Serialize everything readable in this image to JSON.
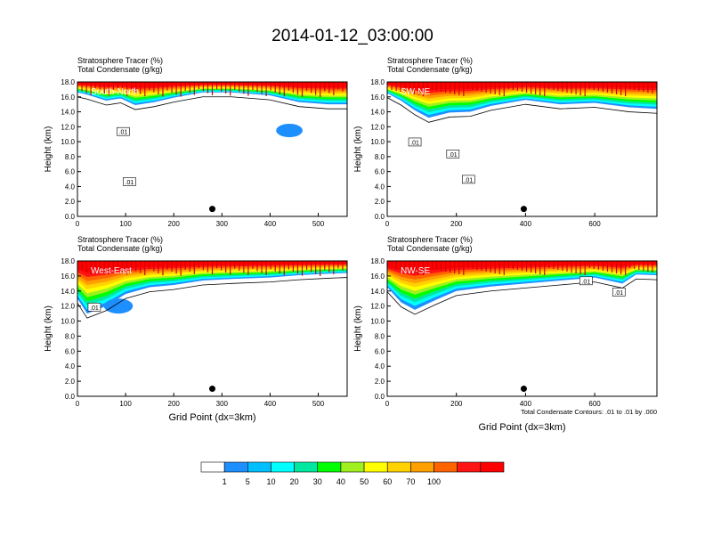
{
  "title": "2014-01-12_03:00:00",
  "chart_data": [
    {
      "type": "heatmap",
      "panel_label": "South-North",
      "title_lines": [
        "Stratosphere Tracer   (%)",
        "Total Condensate   (g/kg)"
      ],
      "ylabel": "Height (km)",
      "xlabel": "",
      "xlim": [
        0,
        560
      ],
      "ylim": [
        0,
        18
      ],
      "xticks": [
        0,
        100,
        200,
        300,
        400,
        500
      ],
      "yticks": [
        "0.0",
        "2.0",
        "4.0",
        "6.0",
        "8.0",
        "10.0",
        "12.0",
        "14.0",
        "16.0",
        "18.0"
      ],
      "contour_labels": [
        {
          "text": ".01",
          "x": 95,
          "y": 11.3
        },
        {
          "text": ".01",
          "x": 108,
          "y": 4.6
        }
      ],
      "marker": {
        "x": 280,
        "y": 1.0
      },
      "stratosphere_base_km": [
        [
          0,
          16.6
        ],
        [
          20,
          16.3
        ],
        [
          60,
          15.5
        ],
        [
          90,
          15.8
        ],
        [
          120,
          14.9
        ],
        [
          160,
          15.3
        ],
        [
          200,
          15.9
        ],
        [
          260,
          16.6
        ],
        [
          320,
          16.6
        ],
        [
          400,
          16.2
        ],
        [
          460,
          15.3
        ],
        [
          520,
          15.0
        ],
        [
          560,
          15.0
        ]
      ],
      "extra_blobs": [
        {
          "x": 440,
          "y": 11.5,
          "w": 55,
          "h": 1.8
        }
      ]
    },
    {
      "type": "heatmap",
      "panel_label": "SW-NE",
      "title_lines": [
        "Stratosphere Tracer   (%)",
        "Total Condensate   (g/kg)"
      ],
      "ylabel": "Height (km)",
      "xlabel": "",
      "xlim": [
        0,
        780
      ],
      "ylim": [
        0,
        18
      ],
      "xticks": [
        0,
        200,
        400,
        600
      ],
      "yticks": [
        "0.0",
        "2.0",
        "4.0",
        "6.0",
        "8.0",
        "10.0",
        "12.0",
        "14.0",
        "16.0",
        "18.0"
      ],
      "contour_labels": [
        {
          "text": ".01",
          "x": 80,
          "y": 9.9
        },
        {
          "text": ".01",
          "x": 190,
          "y": 8.3
        },
        {
          "text": ".01",
          "x": 235,
          "y": 4.9
        }
      ],
      "marker": {
        "x": 395,
        "y": 1.0
      },
      "stratosphere_base_km": [
        [
          0,
          16.5
        ],
        [
          40,
          15.5
        ],
        [
          80,
          14.2
        ],
        [
          120,
          13.2
        ],
        [
          180,
          13.9
        ],
        [
          240,
          14.0
        ],
        [
          300,
          14.8
        ],
        [
          400,
          15.6
        ],
        [
          500,
          15.0
        ],
        [
          600,
          15.2
        ],
        [
          700,
          14.6
        ],
        [
          780,
          14.4
        ]
      ],
      "extra_blobs": []
    },
    {
      "type": "heatmap",
      "panel_label": "West-East",
      "title_lines": [
        "Stratosphere Tracer   (%)",
        "Total Condensate   (g/kg)"
      ],
      "ylabel": "Height (km)",
      "xlabel": "Grid Point (dx=3km)",
      "xlim": [
        0,
        560
      ],
      "ylim": [
        0,
        18
      ],
      "xticks": [
        0,
        100,
        200,
        300,
        400,
        500
      ],
      "yticks": [
        "0.0",
        "2.0",
        "4.0",
        "6.0",
        "8.0",
        "10.0",
        "12.0",
        "14.0",
        "16.0",
        "18.0"
      ],
      "contour_labels": [
        {
          "text": ".01",
          "x": 35,
          "y": 11.8
        }
      ],
      "marker": {
        "x": 280,
        "y": 1.0
      },
      "stratosphere_base_km": [
        [
          0,
          13.0
        ],
        [
          20,
          11.0
        ],
        [
          60,
          12.0
        ],
        [
          100,
          13.6
        ],
        [
          150,
          14.5
        ],
        [
          200,
          14.8
        ],
        [
          260,
          15.4
        ],
        [
          320,
          15.6
        ],
        [
          400,
          15.8
        ],
        [
          460,
          16.1
        ],
        [
          520,
          16.3
        ],
        [
          560,
          16.4
        ]
      ],
      "extra_blobs": [
        {
          "x": 85,
          "y": 12.0,
          "w": 60,
          "h": 2.0
        }
      ]
    },
    {
      "type": "heatmap",
      "panel_label": "NW-SE",
      "title_lines": [
        "Stratosphere Tracer   (%)",
        "Total Condensate   (g/kg)"
      ],
      "ylabel": "Height (km)",
      "xlabel": "Grid Point (dx=3km)",
      "xlim": [
        0,
        780
      ],
      "ylim": [
        0,
        18
      ],
      "xticks": [
        0,
        200,
        400,
        600
      ],
      "yticks": [
        "0.0",
        "2.0",
        "4.0",
        "6.0",
        "8.0",
        "10.0",
        "12.0",
        "14.0",
        "16.0",
        "18.0"
      ],
      "contour_labels": [
        {
          "text": ".01",
          "x": 575,
          "y": 15.3
        },
        {
          "text": ".01",
          "x": 670,
          "y": 13.8
        }
      ],
      "marker": {
        "x": 395,
        "y": 1.0
      },
      "stratosphere_base_km": [
        [
          0,
          14.5
        ],
        [
          40,
          12.5
        ],
        [
          80,
          11.5
        ],
        [
          140,
          12.8
        ],
        [
          200,
          14.0
        ],
        [
          300,
          14.6
        ],
        [
          400,
          15.0
        ],
        [
          500,
          15.4
        ],
        [
          600,
          15.8
        ],
        [
          680,
          15.0
        ],
        [
          720,
          16.2
        ],
        [
          780,
          16.1
        ]
      ],
      "extra_blobs": [],
      "footnote": "Total Condensate Contours: .01 to .01 by .000"
    }
  ],
  "colorbar": {
    "labels": [
      "1",
      "5",
      "10",
      "20",
      "30",
      "40",
      "50",
      "60",
      "70",
      "100"
    ],
    "colors": [
      "#ffffff",
      "#1e8fff",
      "#00bfff",
      "#00ffff",
      "#00e8a0",
      "#00ff00",
      "#a0f020",
      "#ffff00",
      "#ffd200",
      "#ffa000",
      "#ff6400",
      "#ff1414",
      "#ff0000"
    ]
  }
}
